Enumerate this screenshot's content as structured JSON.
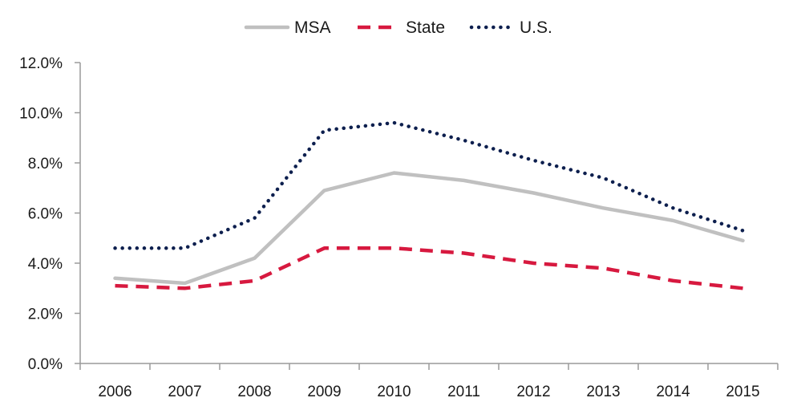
{
  "chart_data": {
    "type": "line",
    "title": "",
    "xlabel": "",
    "ylabel": "",
    "categories": [
      "2006",
      "2007",
      "2008",
      "2009",
      "2010",
      "2011",
      "2012",
      "2013",
      "2014",
      "2015"
    ],
    "ylim": [
      0,
      12
    ],
    "yticks": [
      0,
      2,
      4,
      6,
      8,
      10,
      12
    ],
    "ytick_labels": [
      "0.0%",
      "2.0%",
      "4.0%",
      "6.0%",
      "8.0%",
      "10.0%",
      "12.0%"
    ],
    "grid": false,
    "legend_position": "top-center",
    "series": [
      {
        "name": "MSA",
        "values": [
          3.4,
          3.2,
          4.2,
          6.9,
          7.6,
          7.3,
          6.8,
          6.2,
          5.7,
          4.9
        ],
        "color": "#c0c0c0",
        "style": "solid"
      },
      {
        "name": "State",
        "values": [
          3.1,
          3.0,
          3.3,
          4.6,
          4.6,
          4.4,
          4.0,
          3.8,
          3.3,
          3.0
        ],
        "color": "#d7193f",
        "style": "dashed"
      },
      {
        "name": "U.S.",
        "values": [
          4.6,
          4.6,
          5.8,
          9.3,
          9.6,
          8.9,
          8.1,
          7.4,
          6.2,
          5.3
        ],
        "color": "#0d1f4e",
        "style": "dotted"
      }
    ]
  }
}
